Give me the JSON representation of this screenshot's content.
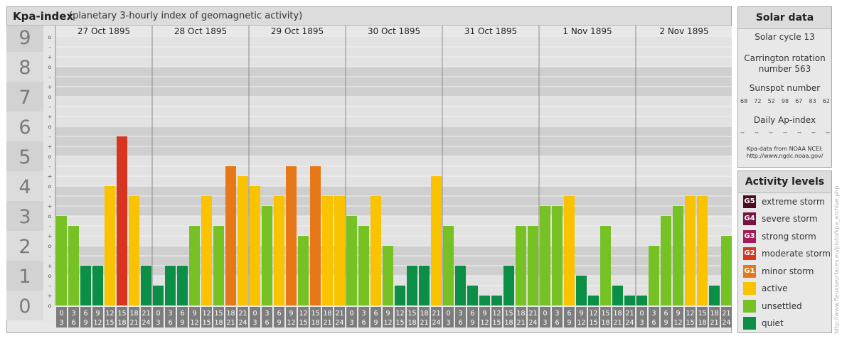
{
  "title": {
    "main": "Kpa-index",
    "sub": "(planetary 3-hourly index of geomagnetic activity)"
  },
  "colors": {
    "quiet": "#0b8f46",
    "unsettled": "#76c124",
    "active": "#f9c300",
    "minor_storm": "#e67817",
    "moderate_storm": "#d7351f",
    "strong_storm": "#a51a57",
    "severe_storm": "#7a1140",
    "extreme_storm": "#4d0a22"
  },
  "chart_data": {
    "type": "bar",
    "title": "Kpa-index",
    "ylabel": "",
    "ylim": [
      0,
      9
    ],
    "y_ticks": [
      "0",
      "1",
      "2",
      "3",
      "4",
      "5",
      "6",
      "7",
      "8",
      "9"
    ],
    "sub_ticks": [
      "o",
      "+",
      "-"
    ],
    "days": [
      "27 Oct 1895",
      "28 Oct 1895",
      "29 Oct 1895",
      "30 Oct 1895",
      "31 Oct 1895",
      "1 Nov 1895",
      "2 Nov 1895"
    ],
    "interval_starts": [
      "0",
      "3",
      "6",
      "9",
      "12",
      "15",
      "18",
      "21"
    ],
    "interval_ends": [
      "3",
      "6",
      "9",
      "12",
      "15",
      "18",
      "21",
      "24"
    ],
    "values": [
      3,
      2.667,
      1.333,
      1.333,
      4,
      5.667,
      3.667,
      1.333,
      0.667,
      1.333,
      1.333,
      2.667,
      3.667,
      2.667,
      4.667,
      4.333,
      4,
      3.333,
      3.667,
      4.667,
      2.333,
      4.667,
      3.667,
      3.667,
      3,
      2.667,
      3.667,
      2,
      0.667,
      1.333,
      1.333,
      4.333,
      2.667,
      1.333,
      0.667,
      0.333,
      0.333,
      1.333,
      2.667,
      2.667,
      3.333,
      3.333,
      3.667,
      1,
      0.333,
      2.667,
      0.667,
      0.333,
      0.333,
      2,
      3,
      3.333,
      3.667,
      3.667,
      0.667,
      2.333
    ]
  },
  "solar": {
    "header": "Solar data",
    "cycle": "Solar cycle 13",
    "carrington": [
      "Carrington rotation",
      "number 563"
    ],
    "sunspot_label": "Sunspot number",
    "sunspot_values": [
      "68",
      "72",
      "52",
      "98",
      "67",
      "83",
      "62"
    ],
    "ap_label": "Daily Ap-index",
    "ap_values": [
      "--",
      "--",
      "--",
      "--",
      "--",
      "--",
      "--"
    ],
    "source_line1": "Kpa-data from NOAA NCEI:",
    "source_line2": "http://www.ngdc.noaa.gov/"
  },
  "activity": {
    "header": "Activity levels",
    "levels": [
      {
        "code": "G5",
        "label": "extreme storm",
        "color": "#4d0a22"
      },
      {
        "code": "G4",
        "label": "severe storm",
        "color": "#7a1140"
      },
      {
        "code": "G3",
        "label": "strong storm",
        "color": "#a51a57"
      },
      {
        "code": "G2",
        "label": "moderate storm",
        "color": "#d7351f"
      },
      {
        "code": "G1",
        "label": "minor storm",
        "color": "#e67817"
      },
      {
        "code": "",
        "label": "active",
        "color": "#f9c300"
      },
      {
        "code": "",
        "label": "unsettled",
        "color": "#76c124"
      },
      {
        "code": "",
        "label": "quiet",
        "color": "#0b8f46"
      }
    ]
  },
  "watermark": "http://www.fleuxseurfaces.eu/pluto/kpa_archive.php"
}
